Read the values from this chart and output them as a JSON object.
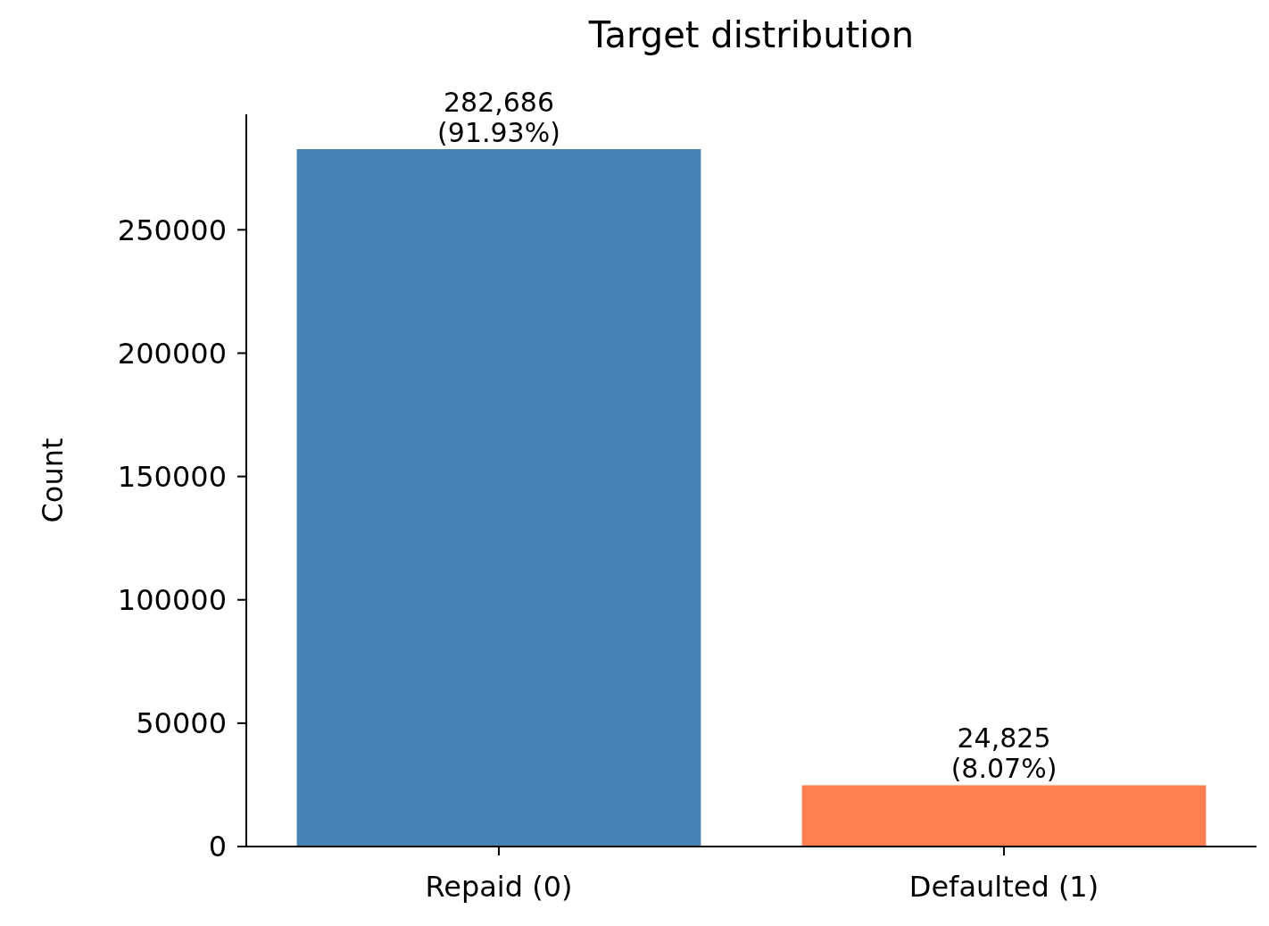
{
  "chart_data": {
    "type": "bar",
    "title": "Target distribution",
    "ylabel": "Count",
    "categories": [
      "Repaid (0)",
      "Defaulted (1)"
    ],
    "values": [
      282686,
      24825
    ],
    "colors": [
      "#4682b4",
      "#ff7f50"
    ],
    "value_labels": [
      "282,686\n(91.93%)",
      "24,825\n(8.07%)"
    ],
    "ylim": [
      0,
      296820
    ],
    "yticks": [
      0,
      50000,
      100000,
      150000,
      200000,
      250000
    ],
    "grid": false
  }
}
